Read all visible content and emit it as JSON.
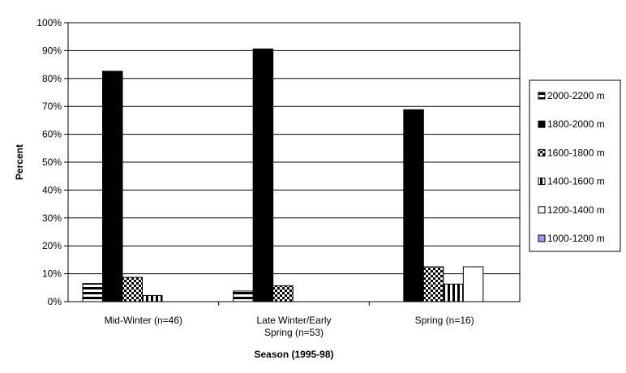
{
  "chart_data": {
    "type": "bar",
    "title": "",
    "xlabel": "Season (1995-98)",
    "ylabel": "Percent",
    "ylim": [
      0,
      100
    ],
    "yticks": [
      "0%",
      "10%",
      "20%",
      "30%",
      "40%",
      "50%",
      "60%",
      "70%",
      "80%",
      "90%",
      "100%"
    ],
    "categories": [
      [
        "Mid-Winter (n=46)"
      ],
      [
        "Late Winter/Early",
        "Spring (n=53)"
      ],
      [
        "Spring (n=16)"
      ]
    ],
    "series": [
      {
        "name": "2000-2200 m",
        "values": [
          6.5,
          3.8,
          0
        ],
        "pattern": "hstripes"
      },
      {
        "name": "1800-2000 m",
        "values": [
          82.6,
          90.6,
          68.8
        ],
        "pattern": "solid"
      },
      {
        "name": "1600-1800 m",
        "values": [
          8.7,
          5.7,
          12.5
        ],
        "pattern": "checker"
      },
      {
        "name": "1400-1600 m",
        "values": [
          2.2,
          0,
          6.3
        ],
        "pattern": "vstripes"
      },
      {
        "name": "1200-1400 m",
        "values": [
          0,
          0,
          12.5
        ],
        "pattern": "white"
      },
      {
        "name": "1000-1200 m",
        "values": [
          0,
          0,
          0
        ],
        "pattern": "blue"
      }
    ],
    "grid": true,
    "legend_position": "right"
  }
}
